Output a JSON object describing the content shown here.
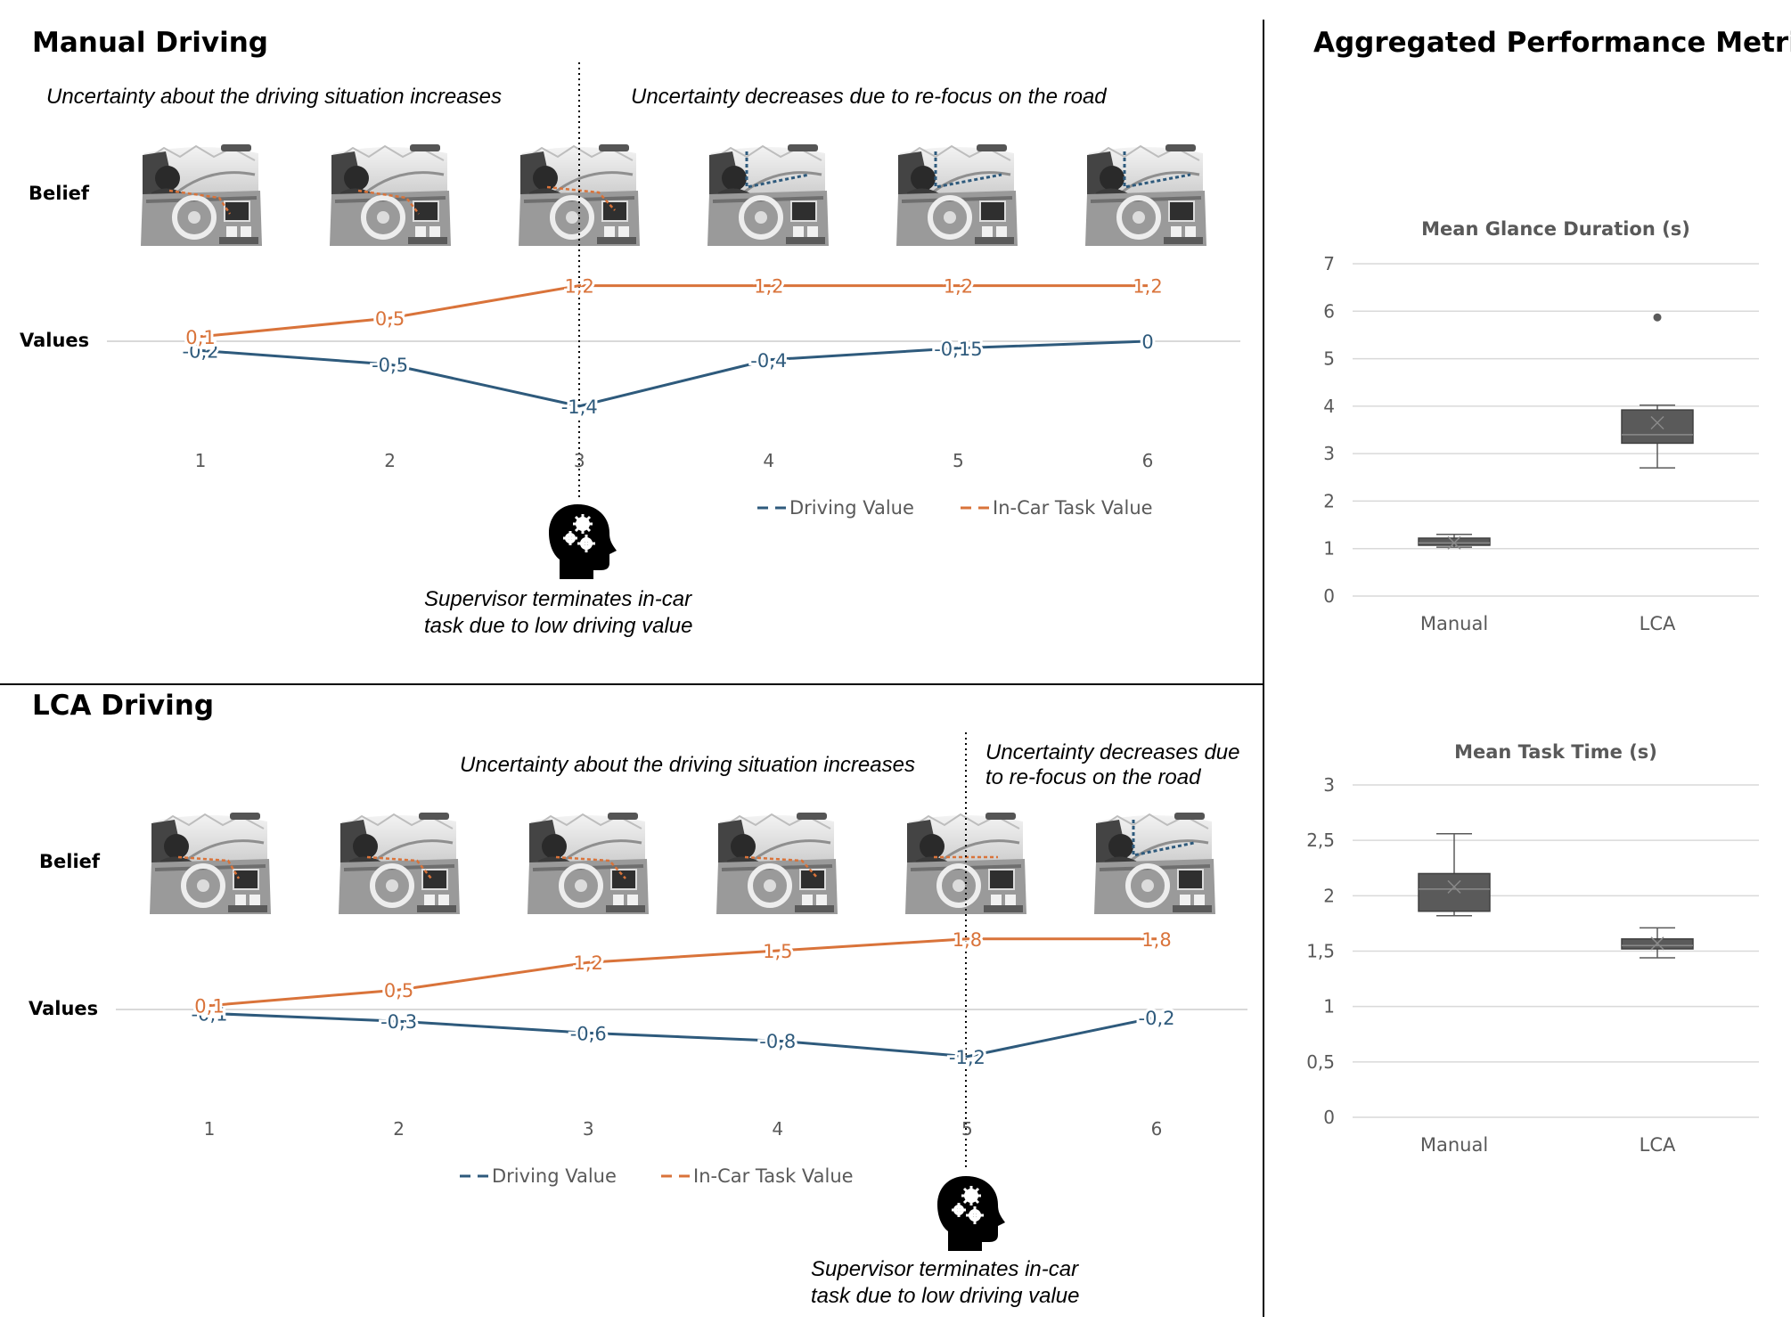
{
  "colors": {
    "driving": "#2e5a7c",
    "incar": "#d9733a",
    "grid": "#d9d9d9",
    "box": "#5a5a5a",
    "axis_text": "#595959"
  },
  "sections": {
    "manual": {
      "title": "Manual Driving",
      "annotation_left": "Uncertainty about the driving situation increases",
      "annotation_right": "Uncertainty decreases due to re-focus on the road",
      "belief_label": "Belief",
      "values_label": "Values",
      "supervisor_line1": "Supervisor terminates in-car",
      "supervisor_line2": "task due to low driving value",
      "icon": "head-gears-icon",
      "belief_images": [
        "driver-cockpit-image",
        "driver-cockpit-image",
        "driver-cockpit-image",
        "driver-cockpit-image",
        "driver-cockpit-image",
        "driver-cockpit-image"
      ]
    },
    "lca": {
      "title": "LCA Driving",
      "annotation_left": "Uncertainty about the driving situation increases",
      "annotation_right_line1": "Uncertainty decreases due",
      "annotation_right_line2": "to re-focus on the road",
      "belief_label": "Belief",
      "values_label": "Values",
      "supervisor_line1": "Supervisor terminates in-car",
      "supervisor_line2": "task due to low driving value",
      "icon": "head-gears-icon",
      "belief_images": [
        "driver-cockpit-image",
        "driver-cockpit-image",
        "driver-cockpit-image",
        "driver-cockpit-image",
        "driver-cockpit-image",
        "driver-cockpit-image"
      ]
    },
    "aggregated": {
      "title": "Aggregated Performance Metrics"
    }
  },
  "chart_data": [
    {
      "id": "manual-values",
      "type": "line",
      "x": [
        1,
        2,
        3,
        4,
        5,
        6
      ],
      "series": [
        {
          "name": "Driving Value",
          "values": [
            -0.2,
            -0.5,
            -1.4,
            -0.4,
            -0.15,
            0
          ],
          "labels": [
            "-0,2",
            "-0,5",
            "-1,4",
            "-0,4",
            "-0,15",
            "0"
          ]
        },
        {
          "name": "In-Car Task Value",
          "values": [
            0.1,
            0.5,
            1.2,
            1.2,
            1.2,
            1.2
          ],
          "labels": [
            "0,1",
            "0,5",
            "1,2",
            "1,2",
            "1,2",
            "1,2"
          ]
        }
      ],
      "tick_labels": [
        "1",
        "2",
        "3",
        "4",
        "5",
        "6"
      ],
      "legend": [
        "Driving Value",
        "In-Car Task Value"
      ],
      "legend_position": "bottom-right",
      "marker_at_x": 3
    },
    {
      "id": "lca-values",
      "type": "line",
      "x": [
        1,
        2,
        3,
        4,
        5,
        6
      ],
      "series": [
        {
          "name": "Driving Value",
          "values": [
            -0.1,
            -0.3,
            -0.6,
            -0.8,
            -1.2,
            -0.2
          ],
          "labels": [
            "-0,1",
            "-0,3",
            "-0,6",
            "-0,8",
            "-1,2",
            "-0,2"
          ]
        },
        {
          "name": "In-Car Task Value",
          "values": [
            0.1,
            0.5,
            1.2,
            1.5,
            1.8,
            1.8
          ],
          "labels": [
            "0,1",
            "0,5",
            "1,2",
            "1,5",
            "1,8",
            "1,8"
          ]
        }
      ],
      "tick_labels": [
        "1",
        "2",
        "3",
        "4",
        "5",
        "6"
      ],
      "legend": [
        "Driving Value",
        "In-Car Task Value"
      ],
      "legend_position": "bottom-center",
      "marker_at_x": 5
    },
    {
      "id": "glance-duration",
      "type": "box",
      "title": "Mean Glance Duration (s)",
      "categories": [
        "Manual",
        "LCA"
      ],
      "ylim": [
        0,
        7
      ],
      "y_ticks": [
        "0",
        "1",
        "2",
        "3",
        "4",
        "5",
        "6",
        "7"
      ],
      "boxes": [
        {
          "min": 1.03,
          "q1": 1.07,
          "median": 1.12,
          "q3": 1.22,
          "max": 1.3,
          "mean": 1.12,
          "outliers": []
        },
        {
          "min": 2.7,
          "q1": 3.22,
          "median": 3.4,
          "q3": 3.92,
          "max": 4.02,
          "mean": 3.65,
          "outliers": [
            5.87
          ]
        }
      ],
      "grid": true
    },
    {
      "id": "task-time",
      "type": "box",
      "title": "Mean Task Time (s)",
      "categories": [
        "Manual",
        "LCA"
      ],
      "ylim": [
        0,
        3
      ],
      "y_ticks": [
        "0",
        "0,5",
        "1",
        "1,5",
        "2",
        "2,5",
        "3"
      ],
      "boxes": [
        {
          "min": 1.82,
          "q1": 1.86,
          "median": 2.06,
          "q3": 2.2,
          "max": 2.56,
          "mean": 2.08,
          "outliers": []
        },
        {
          "min": 1.44,
          "q1": 1.52,
          "median": 1.55,
          "q3": 1.61,
          "max": 1.71,
          "mean": 1.57,
          "outliers": []
        }
      ],
      "grid": true
    }
  ]
}
